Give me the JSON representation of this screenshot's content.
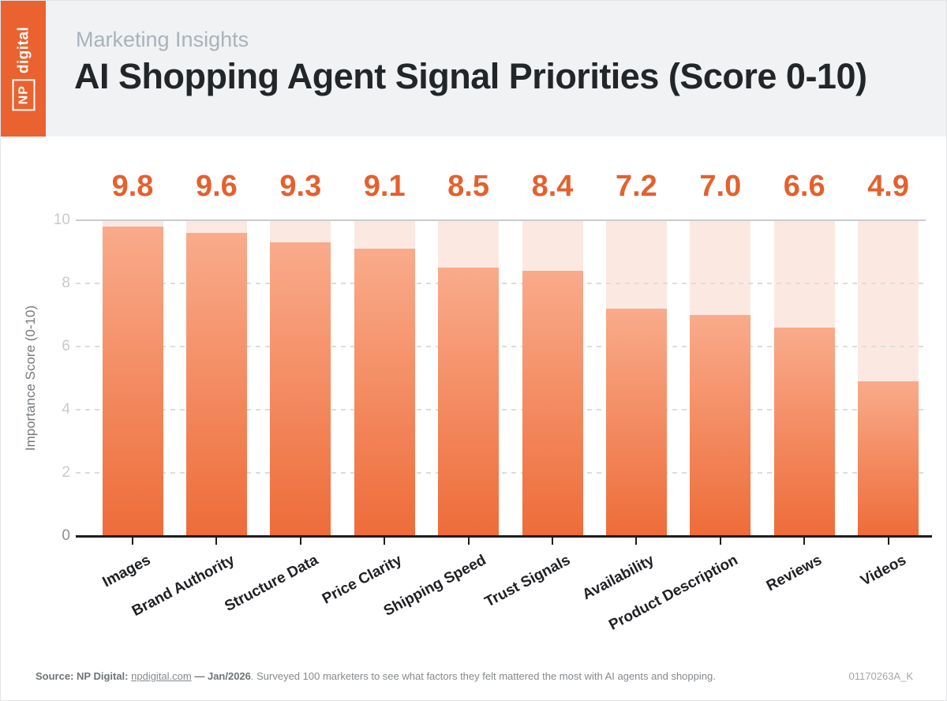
{
  "header": {
    "logo_np": "NP",
    "logo_digital": "digital",
    "eyebrow": "Marketing Insights",
    "title": "AI Shopping Agent Signal Priorities (Score 0-10)"
  },
  "chart_data": {
    "type": "bar",
    "title": "AI Shopping Agent Signal Priorities (Score 0-10)",
    "categories": [
      "Images",
      "Brand Authority",
      "Structure Data",
      "Price Clarity",
      "Shipping Speed",
      "Trust Signals",
      "Availability",
      "Product Description",
      "Reviews",
      "Videos"
    ],
    "values": [
      9.8,
      9.6,
      9.3,
      9.1,
      8.5,
      8.4,
      7.2,
      7.0,
      6.6,
      4.9
    ],
    "value_labels": [
      "9.8",
      "9.6",
      "9.3",
      "9.1",
      "8.5",
      "8.4",
      "7.2",
      "7.0",
      "6.6",
      "4.9"
    ],
    "xlabel": "",
    "ylabel": "Importance Score (0-10)",
    "ylim": [
      0,
      10
    ],
    "yticks": [
      0,
      2,
      4,
      6,
      8,
      10
    ],
    "grid": "horizontal; dashed at 2,4,6,8; solid at 10",
    "legend": "none",
    "colors": {
      "bar_gradient_top": "#f9ab8b",
      "bar_gradient_bottom": "#ee6c39",
      "bar_background_track": "#fbe9e1",
      "value_label": "#e5602d",
      "accent_logo": "#e9622f",
      "axis": "#1d1d1d",
      "gridline": "#dcdcdc"
    }
  },
  "footer": {
    "segments": [
      {
        "text": "Source: NP Digital: ",
        "bold": true,
        "link": false
      },
      {
        "text": "npdigital.com",
        "bold": false,
        "link": true
      },
      {
        "text": " — Jan/2026",
        "bold": true,
        "link": false
      },
      {
        "text": ". Surveyed 100 marketers to see what factors they felt mattered the most with AI agents and shopping.",
        "bold": false,
        "link": false
      }
    ],
    "code": "01170263A_K"
  }
}
